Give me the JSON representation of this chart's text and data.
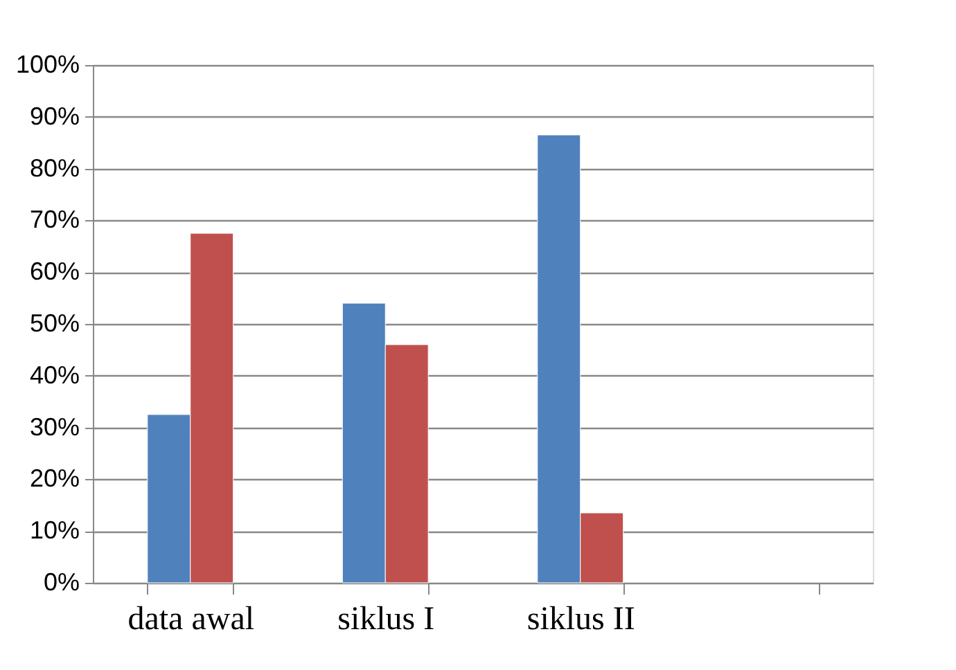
{
  "chart_data": {
    "type": "bar",
    "categories": [
      "data awal",
      "siklus I",
      "siklus II",
      null
    ],
    "series": [
      {
        "color": "#4f81bd",
        "values": [
          32.5,
          54,
          86.5,
          null
        ]
      },
      {
        "color": "#c0504d",
        "values": [
          67.5,
          46,
          13.5,
          null
        ]
      }
    ],
    "ylim": [
      0,
      100
    ],
    "yticks": [
      {
        "value": 0,
        "label": "0%"
      },
      {
        "value": 10,
        "label": "10%"
      },
      {
        "value": 20,
        "label": "20%"
      },
      {
        "value": 30,
        "label": "30%"
      },
      {
        "value": 40,
        "label": "40%"
      },
      {
        "value": 50,
        "label": "50%"
      },
      {
        "value": 60,
        "label": "60%"
      },
      {
        "value": 70,
        "label": "70%"
      },
      {
        "value": 80,
        "label": "80%"
      },
      {
        "value": 90,
        "label": "90%"
      },
      {
        "value": 100,
        "label": "100%"
      }
    ],
    "grid": "y",
    "legend": false
  }
}
